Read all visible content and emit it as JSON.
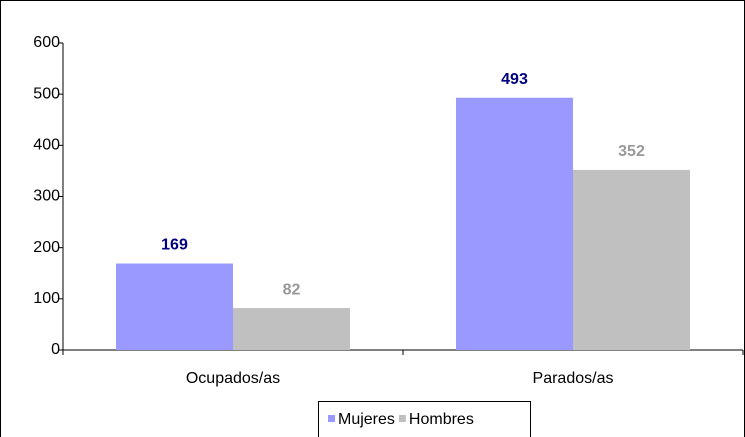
{
  "chart_data": {
    "type": "bar",
    "categories": [
      "Ocupados/as",
      "Parados/as"
    ],
    "series": [
      {
        "name": "Mujeres",
        "color": "#9999ff",
        "label_color": "#000080",
        "values": [
          169,
          493
        ]
      },
      {
        "name": "Hombres",
        "color": "#c0c0c0",
        "label_color": "#999999",
        "values": [
          82,
          352
        ]
      }
    ],
    "ylim": [
      0,
      600
    ],
    "yticks": [
      0,
      100,
      200,
      300,
      400,
      500,
      600
    ],
    "grid": false,
    "legend": "bottom"
  }
}
